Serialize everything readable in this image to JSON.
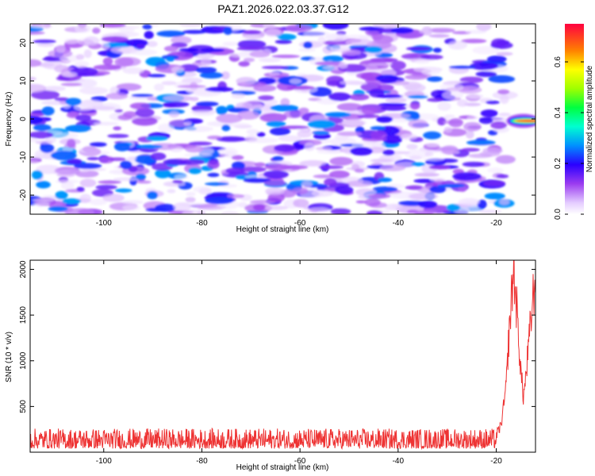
{
  "title": "PAZ1.2026.022.03.37.G12",
  "chart_data": [
    {
      "type": "heatmap",
      "xlabel": "Height of straight line (km)",
      "ylabel": "Frequency (Hz)",
      "xlim": [
        -115,
        -12
      ],
      "ylim": [
        -25,
        25
      ],
      "xticks": [
        -100,
        -80,
        -60,
        -40,
        -20
      ],
      "yticks": [
        20,
        10,
        0,
        -10,
        -20
      ],
      "colorbar": {
        "label": "Normalized spectral amplitude",
        "range": [
          0.0,
          0.75
        ],
        "ticks": [
          "0.0",
          "0.2",
          "0.4",
          "0.6"
        ]
      },
      "features": {
        "noise_blob_x_range": [
          -115,
          -18
        ],
        "noise_amplitude_range": [
          0.02,
          0.28
        ],
        "peak": {
          "x_range": [
            -17,
            -12
          ],
          "y_center": -0.5,
          "amplitude": 0.75
        }
      }
    },
    {
      "type": "line",
      "xlabel": "Height of straight line (km)",
      "ylabel": "SNR (10 * v/v)",
      "xlim": [
        -115,
        -12
      ],
      "ylim": [
        0,
        2100
      ],
      "xticks": [
        -100,
        -80,
        -60,
        -40,
        -20
      ],
      "yticks": [
        500,
        1000,
        1500,
        2000
      ],
      "series": [
        {
          "color": "#ee3333",
          "x": [
            -115,
            -100,
            -80,
            -60,
            -40,
            -25,
            -21,
            -20,
            -19,
            -18,
            -17.5,
            -17,
            -16.5,
            -16,
            -15.5,
            -15,
            -14.5,
            -14,
            -13.5,
            -13,
            -12.5,
            -12
          ],
          "y": [
            130,
            130,
            130,
            130,
            130,
            130,
            150,
            180,
            300,
            700,
            1200,
            1600,
            2000,
            1700,
            1300,
            900,
            600,
            800,
            1100,
            1400,
            1700,
            1900
          ],
          "noise_band": [
            40,
            260
          ]
        }
      ]
    }
  ]
}
